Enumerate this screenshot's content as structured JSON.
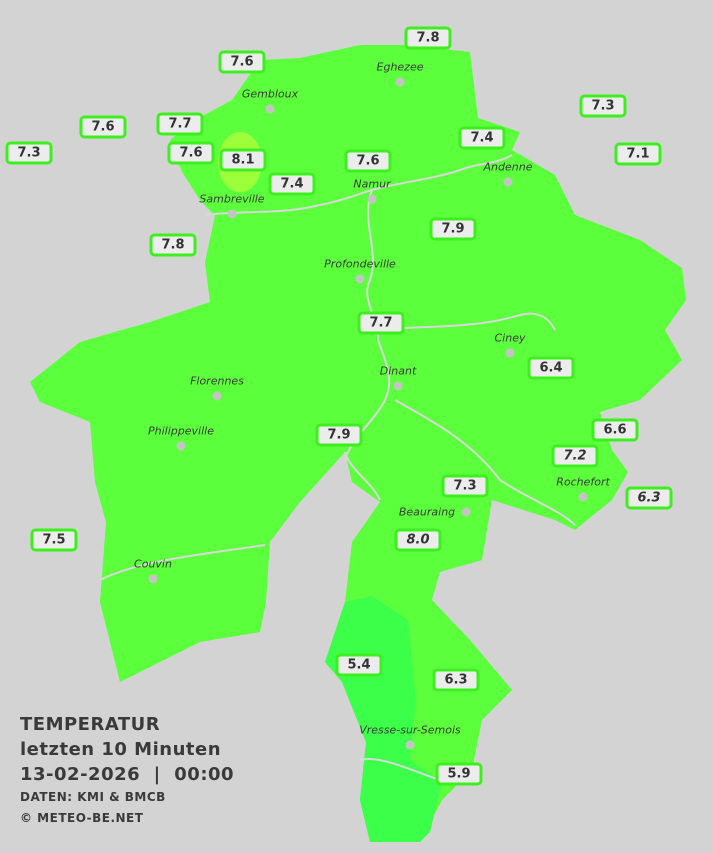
{
  "colors": {
    "background": "#d3d3d3",
    "region": "#5cff3b",
    "warm_zone": "#9cff3a",
    "cool_zone": "#3cff4a",
    "label_border": "#3cf01e",
    "river": "#d8d8d8"
  },
  "legend": {
    "title": "TEMPERATUR",
    "period": "letzten 10 Minuten",
    "datetime": "13-02-2026  |  00:00",
    "source": "DATEN: KMI & BMCB",
    "copyright": "© METEO-BE.NET"
  },
  "towns": [
    {
      "name": "Eghezee"
    },
    {
      "name": "Gembloux"
    },
    {
      "name": "Andenne"
    },
    {
      "name": "Namur"
    },
    {
      "name": "Sambreville"
    },
    {
      "name": "Profondeville"
    },
    {
      "name": "Ciney"
    },
    {
      "name": "Dinant"
    },
    {
      "name": "Florennes"
    },
    {
      "name": "Philippeville"
    },
    {
      "name": "Rochefort"
    },
    {
      "name": "Beauraing"
    },
    {
      "name": "Couvin"
    },
    {
      "name": "Vresse-sur-Semois"
    }
  ],
  "readings": [
    {
      "value": "7.8"
    },
    {
      "value": "7.6"
    },
    {
      "value": "7.3"
    },
    {
      "value": "7.6"
    },
    {
      "value": "7.7"
    },
    {
      "value": "7.4"
    },
    {
      "value": "7.1"
    },
    {
      "value": "7.3"
    },
    {
      "value": "7.6"
    },
    {
      "value": "8.1"
    },
    {
      "value": "7.6"
    },
    {
      "value": "7.4"
    },
    {
      "value": "7.9"
    },
    {
      "value": "7.8"
    },
    {
      "value": "7.7"
    },
    {
      "value": "6.4"
    },
    {
      "value": "7.9"
    },
    {
      "value": "6.6"
    },
    {
      "value": "7.2",
      "italic": true
    },
    {
      "value": "7.3"
    },
    {
      "value": "6.3",
      "italic": true
    },
    {
      "value": "8.0",
      "italic": true
    },
    {
      "value": "7.5"
    },
    {
      "value": "5.4"
    },
    {
      "value": "6.3"
    },
    {
      "value": "5.9"
    }
  ]
}
